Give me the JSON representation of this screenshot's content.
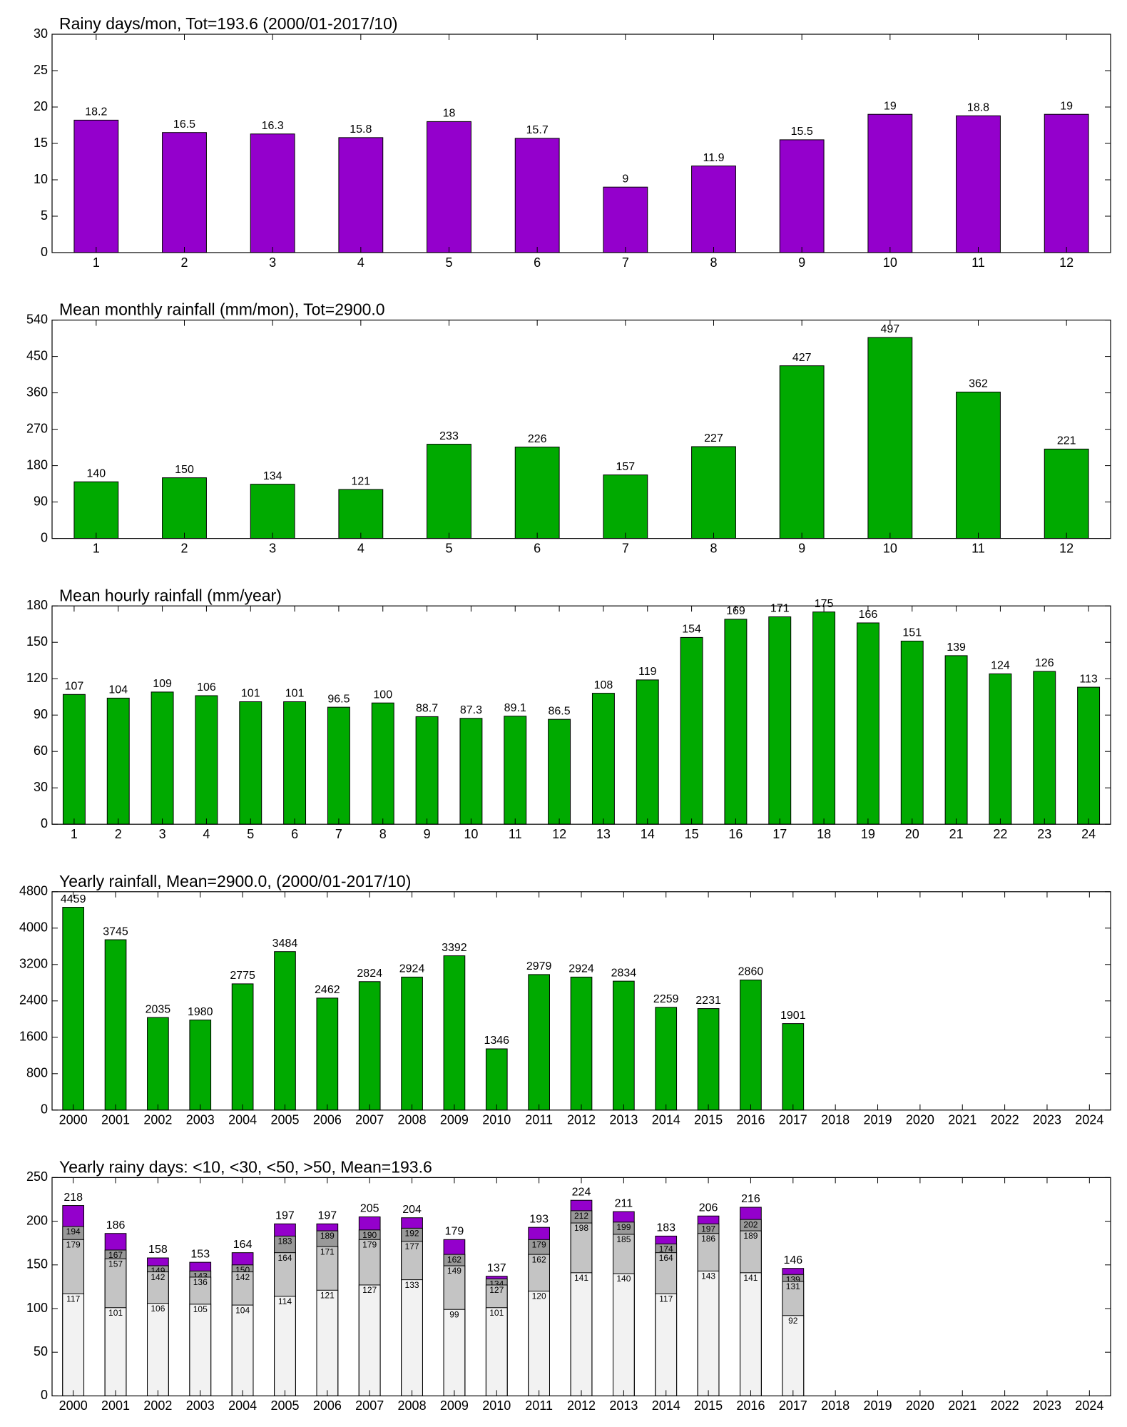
{
  "chart_data": [
    {
      "type": "bar",
      "title": "Rainy days/mon, Tot=193.6 (2000/01-2017/10)",
      "categories": [
        1,
        2,
        3,
        4,
        5,
        6,
        7,
        8,
        9,
        10,
        11,
        12
      ],
      "values": [
        18.2,
        16.5,
        16.3,
        15.8,
        18,
        15.7,
        9,
        11.9,
        15.5,
        19,
        18.8,
        19
      ],
      "color": "#9400cc",
      "ylim": [
        0,
        30
      ],
      "yticks": [
        0,
        5,
        10,
        15,
        20,
        25,
        30
      ]
    },
    {
      "type": "bar",
      "title": "Mean monthly rainfall (mm/mon), Tot=2900.0",
      "categories": [
        1,
        2,
        3,
        4,
        5,
        6,
        7,
        8,
        9,
        10,
        11,
        12
      ],
      "values": [
        140,
        150,
        134,
        121,
        233,
        226,
        157,
        227,
        427,
        497,
        362,
        221
      ],
      "color": "#00aa00",
      "ylim": [
        0,
        540
      ],
      "yticks": [
        0,
        90,
        180,
        270,
        360,
        450,
        540
      ]
    },
    {
      "type": "bar",
      "title": "Mean hourly rainfall (mm/year)",
      "categories": [
        1,
        2,
        3,
        4,
        5,
        6,
        7,
        8,
        9,
        10,
        11,
        12,
        13,
        14,
        15,
        16,
        17,
        18,
        19,
        20,
        21,
        22,
        23,
        24
      ],
      "values": [
        107,
        104,
        109,
        106,
        101,
        101,
        96.5,
        100,
        88.7,
        87.3,
        89.1,
        86.5,
        108,
        119,
        154,
        169,
        171,
        175,
        166,
        151,
        139,
        124,
        126,
        113
      ],
      "color": "#00aa00",
      "ylim": [
        0,
        180
      ],
      "yticks": [
        0,
        30,
        60,
        90,
        120,
        150,
        180
      ]
    },
    {
      "type": "bar",
      "title": "Yearly rainfall, Mean=2900.0, (2000/01-2017/10)",
      "categories": [
        2000,
        2001,
        2002,
        2003,
        2004,
        2005,
        2006,
        2007,
        2008,
        2009,
        2010,
        2011,
        2012,
        2013,
        2014,
        2015,
        2016,
        2017,
        2018,
        2019,
        2020,
        2021,
        2022,
        2023,
        2024
      ],
      "values": [
        4459,
        3745,
        2035,
        1980,
        2775,
        3484,
        2462,
        2824,
        2924,
        3392,
        1346,
        2979,
        2924,
        2834,
        2259,
        2231,
        2860,
        1901,
        null,
        null,
        null,
        null,
        null,
        null,
        null
      ],
      "color": "#00aa00",
      "ylim": [
        0,
        4800
      ],
      "yticks": [
        0,
        800,
        1600,
        2400,
        3200,
        4000,
        4800
      ]
    },
    {
      "type": "bar",
      "title": "Yearly rainy days: <10, <30, <50, >50, Mean=193.6",
      "categories": [
        2000,
        2001,
        2002,
        2003,
        2004,
        2005,
        2006,
        2007,
        2008,
        2009,
        2010,
        2011,
        2012,
        2013,
        2014,
        2015,
        2016,
        2017,
        2018,
        2019,
        2020,
        2021,
        2022,
        2023,
        2024
      ],
      "series": [
        {
          "color": "#9400cc",
          "values": [
            218,
            186,
            158,
            153,
            164,
            197,
            197,
            205,
            204,
            179,
            137,
            193,
            224,
            211,
            183,
            206,
            216,
            146,
            null,
            null,
            null,
            null,
            null,
            null,
            null
          ]
        },
        {
          "color": "#999999",
          "values": [
            194,
            167,
            149,
            143,
            150,
            183,
            189,
            190,
            192,
            162,
            134,
            179,
            212,
            199,
            174,
            197,
            202,
            139,
            null,
            null,
            null,
            null,
            null,
            null,
            null
          ]
        },
        {
          "color": "#c4c4c4",
          "values": [
            179,
            157,
            142,
            136,
            142,
            164,
            171,
            179,
            177,
            149,
            127,
            162,
            198,
            185,
            164,
            186,
            189,
            131,
            null,
            null,
            null,
            null,
            null,
            null,
            null
          ]
        },
        {
          "color": "#f2f2f2",
          "values": [
            117,
            101,
            106,
            105,
            104,
            114,
            121,
            127,
            133,
            99,
            101,
            120,
            141,
            140,
            117,
            143,
            141,
            92,
            null,
            null,
            null,
            null,
            null,
            null,
            null
          ]
        }
      ],
      "ylim": [
        0,
        250
      ],
      "yticks": [
        0,
        50,
        100,
        150,
        200,
        250
      ]
    }
  ]
}
